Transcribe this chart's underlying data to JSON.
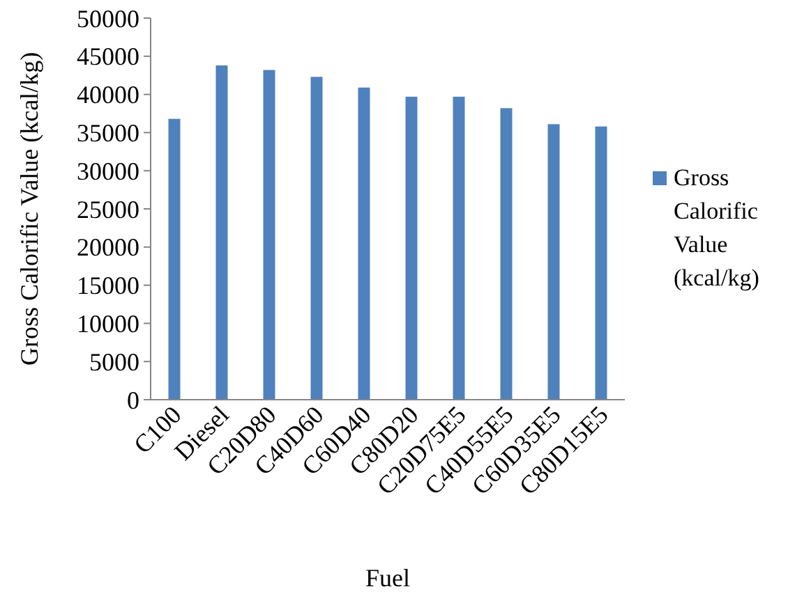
{
  "chart_data": {
    "type": "bar",
    "xlabel": "Fuel",
    "ylabel": "Gross Calorific Value (kcal/kg)",
    "categories": [
      "C100",
      "Diesel",
      "C20D80",
      "C40D60",
      "C60D40",
      "C80D20",
      "C20D75E5",
      "C40D55E5",
      "C60D35E5",
      "C80D15E5"
    ],
    "series": [
      {
        "name": "Gross Calorific Value (kcal/kg)",
        "color": "#4f81bd",
        "values": [
          36800,
          43800,
          43200,
          42300,
          40900,
          39700,
          39700,
          38200,
          36100,
          35800
        ]
      }
    ],
    "ylim": [
      0,
      50000
    ],
    "yticks": [
      0,
      5000,
      10000,
      15000,
      20000,
      25000,
      30000,
      35000,
      40000,
      45000,
      50000
    ],
    "legend": "right"
  }
}
